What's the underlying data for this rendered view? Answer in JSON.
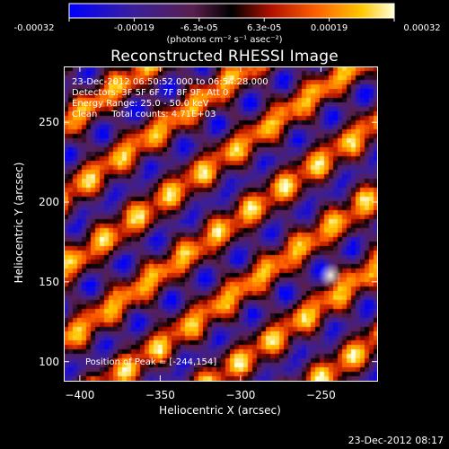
{
  "chart_data": {
    "type": "heatmap",
    "title": "Reconstructed RHESSI Image",
    "colorbar": {
      "ticks": [
        "-0.00032",
        "-0.00019",
        "-6.3e-05",
        "6.3e-05",
        "0.00019",
        "0.00032"
      ],
      "range": [
        -0.00032,
        0.00032
      ],
      "units_label": "(photons cm⁻² s⁻¹ asec⁻²)",
      "colormap": [
        "#0000ff",
        "#3b1f9a",
        "#5a1f4e",
        "#000000",
        "#b01000",
        "#ff6000",
        "#ffc800",
        "#ffffd8"
      ]
    },
    "annotations": [
      "23-Dec-2012 06:50:52.000 to 06:54:28.000",
      "Detectors: 3F 5F 6F 7F 8F 9F, Att 0",
      "Energy Range: 25.0 - 50.0 keV",
      "Clean     Total counts: 4.71E+03"
    ],
    "peak_label": "Position of Peak = [-244,154]",
    "peak": {
      "x": -244,
      "y": 154
    },
    "xlabel": "Heliocentric X (arcsec)",
    "ylabel": "Heliocentric Y (arcsec)",
    "xlim": [
      -410,
      -215
    ],
    "ylim": [
      88,
      285
    ],
    "xticks": [
      {
        "value": -400,
        "label": "−400"
      },
      {
        "value": -350,
        "label": "−350"
      },
      {
        "value": -300,
        "label": "−300"
      },
      {
        "value": -250,
        "label": "−250"
      }
    ],
    "yticks": [
      {
        "value": 100,
        "label": "100"
      },
      {
        "value": 150,
        "label": "150"
      },
      {
        "value": 200,
        "label": "200"
      },
      {
        "value": 250,
        "label": "250"
      }
    ],
    "pattern": {
      "description_free": true,
      "stripe_angle_deg": 35,
      "stripe_period_arcsec": 37
    },
    "timestamp": "23-Dec-2012 08:17"
  }
}
